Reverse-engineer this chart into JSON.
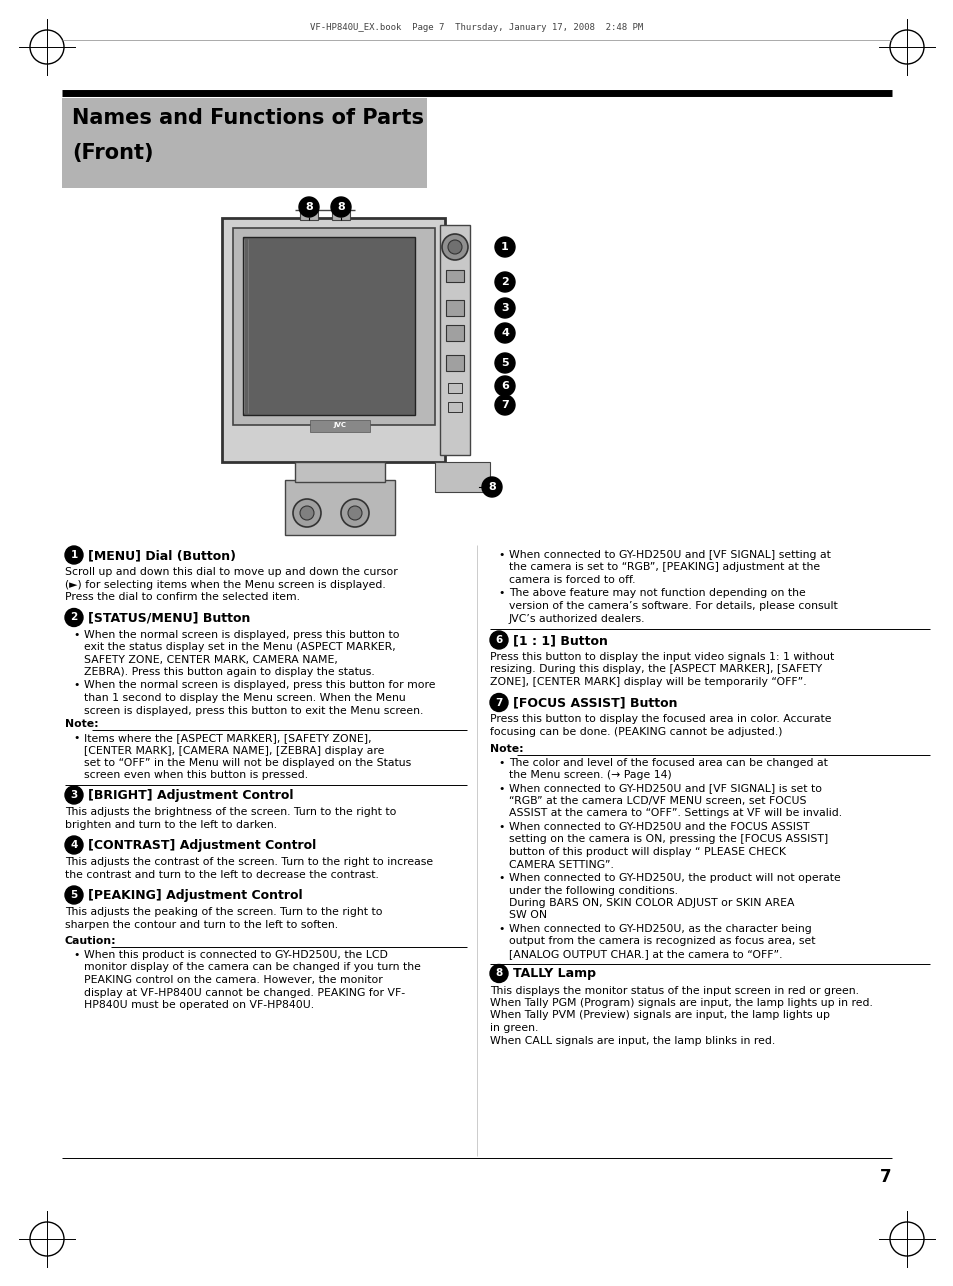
{
  "title_line1": "Names and Functions of Parts",
  "title_line2": "(Front)",
  "title_bg": "#b3b3b3",
  "page_number": "7",
  "header_text": "VF-HP840U_EX.book  Page 7  Thursday, January 17, 2008  2:48 PM",
  "bg_color": "#ffffff",
  "text_color": "#000000",
  "num_circle_color": "#000000",
  "num_text_color": "#ffffff",
  "sections_left": [
    {
      "num": "1",
      "heading": "[MENU] Dial (Button)",
      "type": "body",
      "body": "Scroll up and down this dial to move up and down the cursor\n(►) for selecting items when the Menu screen is displayed.\nPress the dial to confirm the selected item."
    },
    {
      "num": "2",
      "heading": "[STATUS/MENU] Button",
      "type": "bullets_note",
      "bullets": [
        "When the normal screen is displayed, press this button to\nexit the status display set in the Menu (ASPECT MARKER,\nSAFETY ZONE, CENTER MARK, CAMERA NAME,\nZEBRA). Press this button again to display the status.",
        "When the normal screen is displayed, press this button for more\nthan 1 second to display the Menu screen. When the Menu\nscreen is displayed, press this button to exit the Menu screen."
      ],
      "note_label": "Note:",
      "note_bullets": [
        "Items where the [ASPECT MARKER], [SAFETY ZONE],\n[CENTER MARK], [CAMERA NAME], [ZEBRA] display are\nset to “OFF” in the Menu will not be displayed on the Status\nscreen even when this button is pressed."
      ]
    },
    {
      "num": "3",
      "heading": "[BRIGHT] Adjustment Control",
      "type": "body",
      "body": "This adjusts the brightness of the screen. Turn to the right to\nbrighten and turn to the left to darken."
    },
    {
      "num": "4",
      "heading": "[CONTRAST] Adjustment Control",
      "type": "body",
      "body": "This adjusts the contrast of the screen. Turn to the right to increase\nthe contrast and turn to the left to decrease the contrast."
    },
    {
      "num": "5",
      "heading": "[PEAKING] Adjustment Control",
      "type": "body_caution",
      "body": "This adjusts the peaking of the screen. Turn to the right to\nsharpen the contour and turn to the left to soften.",
      "caution_label": "Caution:",
      "caution_bullets": [
        "When this product is connected to GY-HD250U, the LCD\nmonitor display of the camera can be changed if you turn the\nPEAKING control on the camera. However, the monitor\ndisplay at VF-HP840U cannot be changed. PEAKING for VF-\nHP840U must be operated on VF-HP840U."
      ]
    }
  ],
  "sections_right": [
    {
      "type": "caution_cont",
      "caution_bullets": [
        "When connected to GY-HD250U and [VF SIGNAL] setting at\nthe camera is set to “RGB”, [PEAKING] adjustment at the\ncamera is forced to off.",
        "The above feature may not function depending on the\nversion of the camera’s software. For details, please consult\nJVC’s authorized dealers."
      ]
    },
    {
      "num": "6",
      "heading": "[1 : 1] Button",
      "type": "body",
      "body": "Press this button to display the input video signals 1: 1 without\nresizing. During this display, the [ASPECT MARKER], [SAFETY\nZONE], [CENTER MARK] display will be temporarily “OFF”."
    },
    {
      "num": "7",
      "heading": "[FOCUS ASSIST] Button",
      "type": "body_note",
      "body": "Press this button to display the focused area in color. Accurate\nfocusing can be done. (PEAKING cannot be adjusted.)",
      "note_label": "Note:",
      "note_bullets": [
        "The color and level of the focused area can be changed at\nthe Menu screen. (→ Page 14)",
        "When connected to GY-HD250U and [VF SIGNAL] is set to\n“RGB” at the camera LCD/VF MENU screen, set FOCUS\nASSIST at the camera to “OFF”. Settings at VF will be invalid.",
        "When connected to GY-HD250U and the FOCUS ASSIST\nsetting on the camera is ON, pressing the [FOCUS ASSIST]\nbutton of this product will display “ PLEASE CHECK\nCAMERA SETTING”.",
        "When connected to GY-HD250U, the product will not operate\nunder the following conditions.\nDuring BARS ON, SKIN COLOR ADJUST or SKIN AREA\nSW ON",
        "When connected to GY-HD250U, as the character being\noutput from the camera is recognized as focus area, set\n[ANALOG OUTPUT CHAR.] at the camera to “OFF”."
      ]
    },
    {
      "num": "8",
      "heading": "TALLY Lamp",
      "type": "body",
      "body": "This displays the monitor status of the input screen in red or green.\nWhen Tally PGM (Program) signals are input, the lamp lights up in red.\nWhen Tally PVM (Preview) signals are input, the lamp lights up\nin green.\nWhen CALL signals are input, the lamp blinks in red."
    }
  ]
}
